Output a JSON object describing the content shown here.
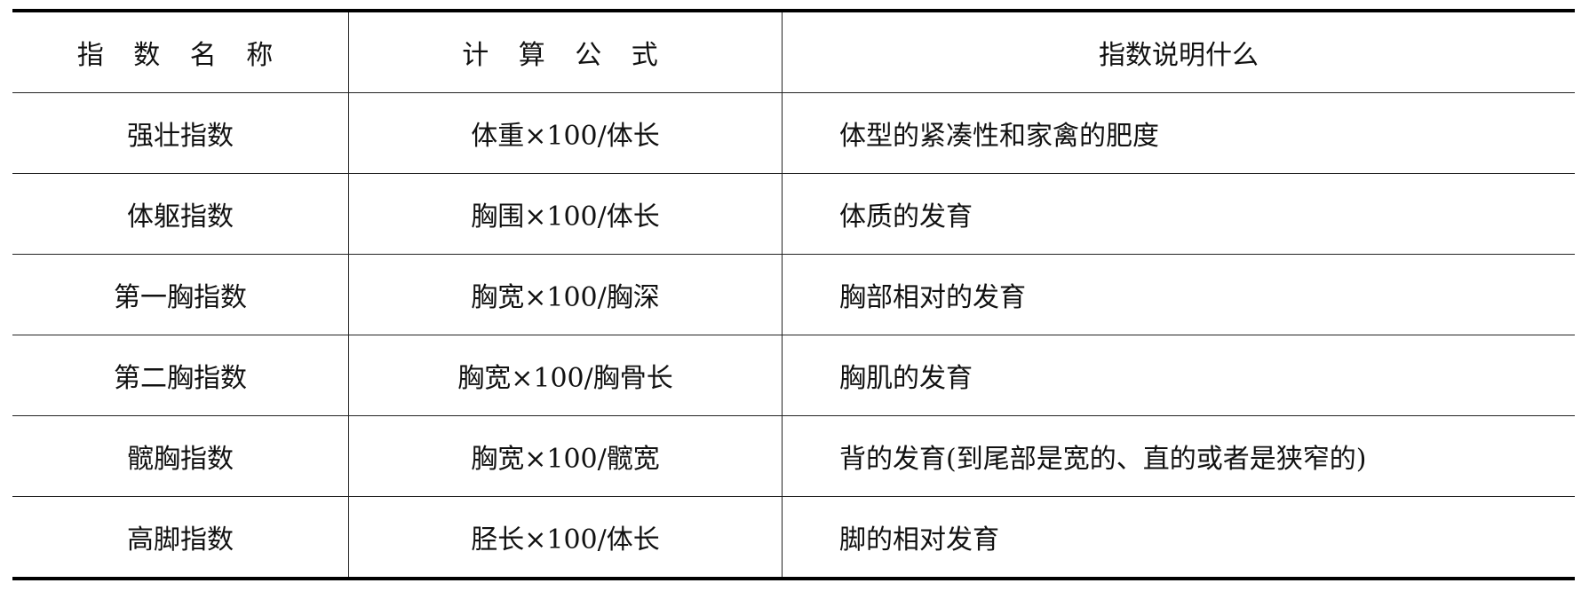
{
  "headers": [
    "指 数 名 称",
    "计 算 公 式",
    "指数说明什么"
  ],
  "rows": [
    {
      "name": "强壮指数",
      "formula": "体重×100/体长",
      "meaning": "体型的紧凑性和家禽的肥度"
    },
    {
      "name": "体躯指数",
      "formula": "胸围×100/体长",
      "meaning": "体质的发育"
    },
    {
      "name": "第一胸指数",
      "formula": "胸宽×100/胸深",
      "meaning": "胸部相对的发育"
    },
    {
      "name": "第二胸指数",
      "formula": "胸宽×100/胸骨长",
      "meaning": "胸肌的发育"
    },
    {
      "name": "髋胸指数",
      "formula": "胸宽×100/髋宽",
      "meaning": "背的发育(到尾部是宽的、直的或者是狭窄的)"
    },
    {
      "name": "高脚指数",
      "formula": "胫长×100/体长",
      "meaning": "脚的相对发育"
    }
  ]
}
